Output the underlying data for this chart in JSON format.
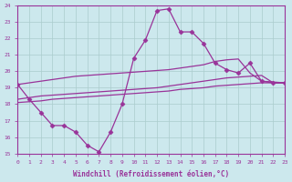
{
  "background_color": "#cce8ed",
  "grid_color": "#aacccc",
  "line_color": "#993399",
  "xlabel": "Windchill (Refroidissement éolien,°C)",
  "ylim": [
    15,
    24
  ],
  "xlim": [
    0,
    23
  ],
  "yticks": [
    15,
    16,
    17,
    18,
    19,
    20,
    21,
    22,
    23,
    24
  ],
  "xticks": [
    0,
    1,
    2,
    3,
    4,
    5,
    6,
    7,
    8,
    9,
    10,
    11,
    12,
    13,
    14,
    15,
    16,
    17,
    18,
    19,
    20,
    21,
    22,
    23
  ],
  "line_zigzag_x": [
    0,
    1,
    2,
    3,
    4,
    5,
    6,
    7,
    8,
    9,
    10,
    11,
    12,
    13,
    14,
    15,
    16,
    17,
    18,
    19,
    20,
    21,
    22,
    23
  ],
  "line_zigzag_y": [
    19.2,
    18.3,
    17.5,
    16.7,
    16.7,
    16.3,
    15.5,
    15.1,
    16.3,
    18.0,
    20.8,
    21.9,
    23.7,
    23.8,
    22.4,
    22.4,
    21.7,
    20.5,
    20.1,
    19.9,
    20.5,
    19.4,
    19.3,
    19.3
  ],
  "line_upper_x": [
    0,
    1,
    2,
    3,
    4,
    5,
    6,
    7,
    8,
    9,
    10,
    11,
    12,
    13,
    14,
    15,
    16,
    17,
    18,
    19,
    20,
    21,
    22,
    23
  ],
  "line_upper_y": [
    19.2,
    19.3,
    19.4,
    19.5,
    19.6,
    19.7,
    19.75,
    19.8,
    19.85,
    19.9,
    19.95,
    20.0,
    20.05,
    20.1,
    20.2,
    20.3,
    20.4,
    20.6,
    20.7,
    20.75,
    19.9,
    19.4,
    19.35,
    19.3
  ],
  "line_mid_x": [
    0,
    1,
    2,
    3,
    4,
    5,
    6,
    7,
    8,
    9,
    10,
    11,
    12,
    13,
    14,
    15,
    16,
    17,
    18,
    19,
    20,
    21,
    22,
    23
  ],
  "line_mid_y": [
    18.3,
    18.4,
    18.5,
    18.55,
    18.6,
    18.65,
    18.7,
    18.75,
    18.8,
    18.85,
    18.9,
    18.95,
    19.0,
    19.1,
    19.2,
    19.3,
    19.4,
    19.5,
    19.6,
    19.65,
    19.7,
    19.75,
    19.3,
    19.3
  ],
  "line_lower_x": [
    0,
    1,
    2,
    3,
    4,
    5,
    6,
    7,
    8,
    9,
    10,
    11,
    12,
    13,
    14,
    15,
    16,
    17,
    18,
    19,
    20,
    21,
    22,
    23
  ],
  "line_lower_y": [
    18.1,
    18.15,
    18.2,
    18.3,
    18.35,
    18.4,
    18.45,
    18.5,
    18.55,
    18.6,
    18.65,
    18.7,
    18.75,
    18.8,
    18.9,
    18.95,
    19.0,
    19.1,
    19.15,
    19.2,
    19.25,
    19.3,
    19.3,
    19.3
  ],
  "marker": "D",
  "marker_size": 2.5,
  "linewidth": 0.9
}
